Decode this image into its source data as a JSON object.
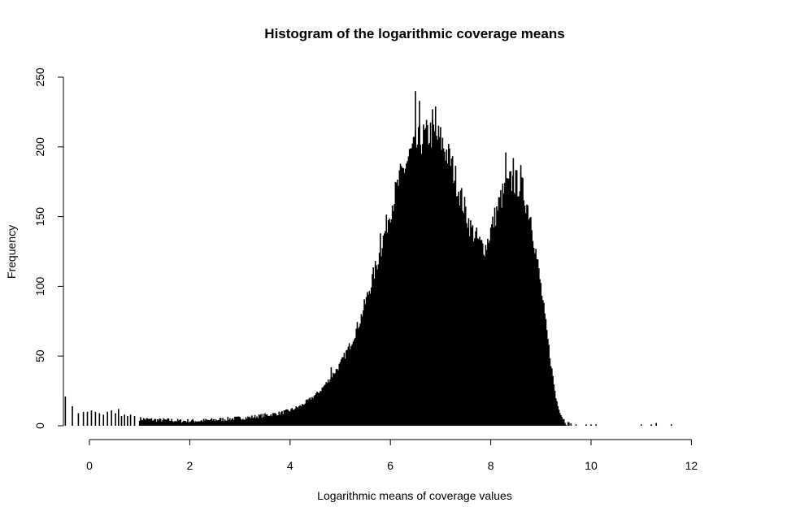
{
  "chart_data": {
    "type": "bar",
    "title": "Histogram of the logarithmic coverage means",
    "xlabel": "Logarithmic means of coverage values",
    "ylabel": "Frequency",
    "xlim": [
      -0.5,
      12
    ],
    "ylim": [
      0,
      250
    ],
    "x_ticks": [
      0,
      2,
      4,
      6,
      8,
      10,
      12
    ],
    "y_ticks": [
      0,
      50,
      100,
      150,
      200,
      250
    ],
    "bar_color": "#000000",
    "grid": false,
    "bin_width": 0.02,
    "bins": [
      [
        -0.48,
        21
      ],
      [
        -0.34,
        14
      ],
      [
        -0.22,
        9
      ],
      [
        -0.12,
        10
      ],
      [
        -0.04,
        10
      ],
      [
        0.04,
        11
      ],
      [
        0.12,
        10
      ],
      [
        0.2,
        9
      ],
      [
        0.28,
        8
      ],
      [
        0.36,
        10
      ],
      [
        0.44,
        11
      ],
      [
        0.52,
        9
      ],
      [
        0.58,
        12
      ],
      [
        0.64,
        7
      ],
      [
        0.7,
        8
      ],
      [
        0.76,
        7
      ],
      [
        0.82,
        8
      ],
      [
        0.9,
        7
      ]
    ],
    "profile": [
      [
        1.0,
        5
      ],
      [
        1.2,
        4.5
      ],
      [
        1.4,
        4
      ],
      [
        1.6,
        4
      ],
      [
        1.8,
        3.5
      ],
      [
        2.0,
        3.5
      ],
      [
        2.2,
        3.5
      ],
      [
        2.4,
        4
      ],
      [
        2.6,
        4.5
      ],
      [
        2.8,
        5
      ],
      [
        3.0,
        5.5
      ],
      [
        3.2,
        6
      ],
      [
        3.4,
        7
      ],
      [
        3.6,
        8
      ],
      [
        3.8,
        9
      ],
      [
        4.0,
        11
      ],
      [
        4.2,
        14
      ],
      [
        4.4,
        19
      ],
      [
        4.6,
        25
      ],
      [
        4.8,
        34
      ],
      [
        5.0,
        44
      ],
      [
        5.2,
        58
      ],
      [
        5.4,
        76
      ],
      [
        5.6,
        100
      ],
      [
        5.8,
        125
      ],
      [
        6.0,
        155
      ],
      [
        6.2,
        178
      ],
      [
        6.4,
        195
      ],
      [
        6.6,
        205
      ],
      [
        6.8,
        210
      ],
      [
        7.0,
        205
      ],
      [
        7.2,
        190
      ],
      [
        7.4,
        165
      ],
      [
        7.6,
        142
      ],
      [
        7.8,
        130
      ],
      [
        7.9,
        128
      ],
      [
        8.0,
        140
      ],
      [
        8.2,
        163
      ],
      [
        8.4,
        175
      ],
      [
        8.6,
        173
      ],
      [
        8.8,
        150
      ],
      [
        9.0,
        100
      ],
      [
        9.2,
        45
      ],
      [
        9.3,
        20
      ],
      [
        9.4,
        8
      ],
      [
        9.5,
        2
      ],
      [
        9.6,
        1
      ],
      [
        10.0,
        0.4
      ],
      [
        11.0,
        0.3
      ],
      [
        11.6,
        0.2
      ]
    ],
    "spikes": [
      [
        6.5,
        240
      ],
      [
        6.58,
        233
      ],
      [
        6.9,
        229
      ],
      [
        6.84,
        227
      ],
      [
        8.3,
        196
      ],
      [
        8.45,
        192
      ],
      [
        8.6,
        187
      ],
      [
        6.24,
        178
      ],
      [
        5.8,
        138
      ],
      [
        4.82,
        42
      ]
    ],
    "outliers": [
      [
        9.7,
        1
      ],
      [
        9.9,
        1
      ],
      [
        10.0,
        1
      ],
      [
        10.1,
        1
      ],
      [
        11.0,
        1
      ],
      [
        11.2,
        1
      ],
      [
        11.3,
        2
      ],
      [
        11.6,
        1
      ]
    ],
    "x_range": [
      1.0,
      9.6
    ]
  }
}
